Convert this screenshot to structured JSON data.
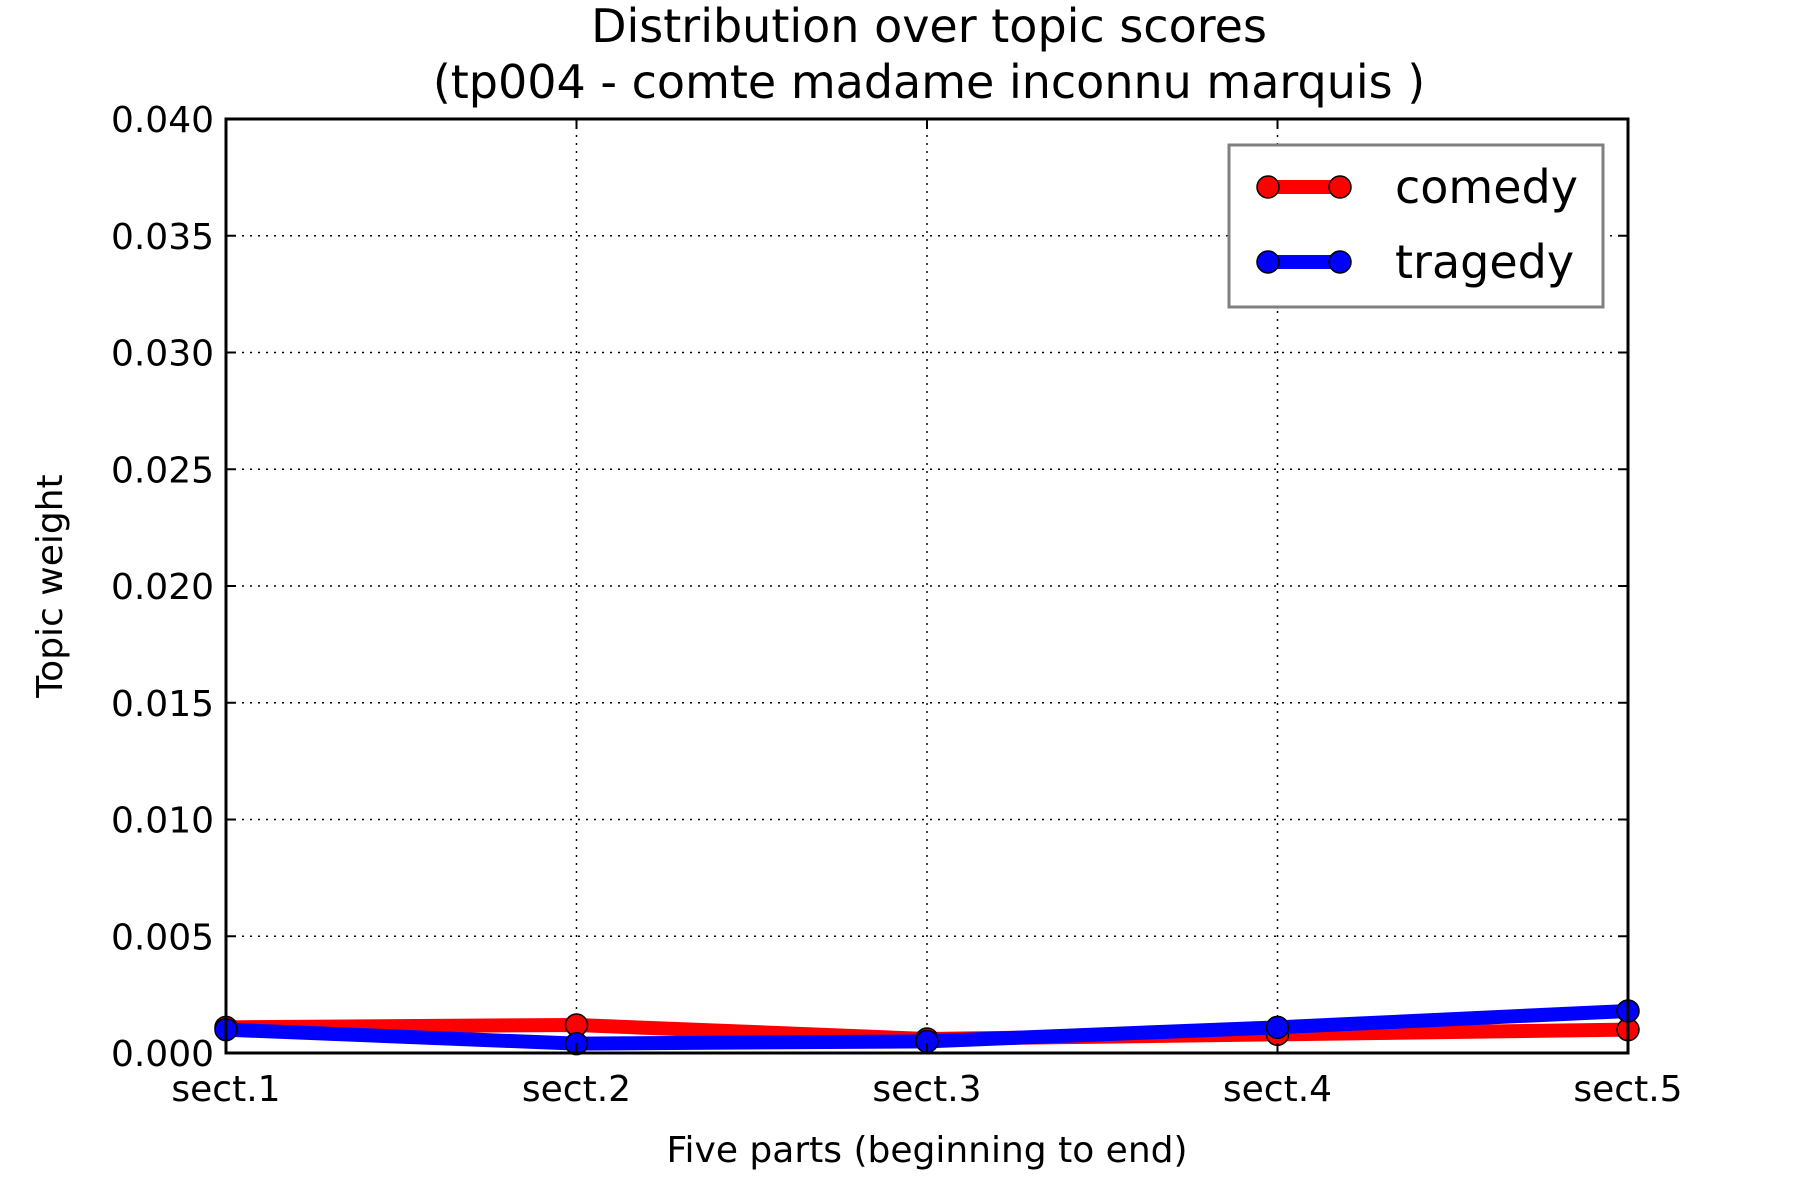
{
  "chart_data": {
    "type": "line",
    "title": [
      "Distribution over topic scores",
      "(tp004 - comte madame inconnu marquis )"
    ],
    "xlabel": "Five parts (beginning to end)",
    "ylabel": "Topic weight",
    "categories": [
      "sect.1",
      "sect.2",
      "sect.3",
      "sect.4",
      "sect.5"
    ],
    "ylim": [
      0,
      0.04
    ],
    "yticks": [
      "0.000",
      "0.005",
      "0.010",
      "0.015",
      "0.020",
      "0.025",
      "0.030",
      "0.035",
      "0.040"
    ],
    "grid": true,
    "legend_position": "top-right",
    "series": [
      {
        "name": "comedy",
        "color": "#ff0000",
        "values": [
          0.0011,
          0.0012,
          0.0006,
          0.0008,
          0.001
        ]
      },
      {
        "name": "tragedy",
        "color": "#0000ff",
        "values": [
          0.001,
          0.0004,
          0.0005,
          0.0011,
          0.0018
        ]
      }
    ]
  }
}
